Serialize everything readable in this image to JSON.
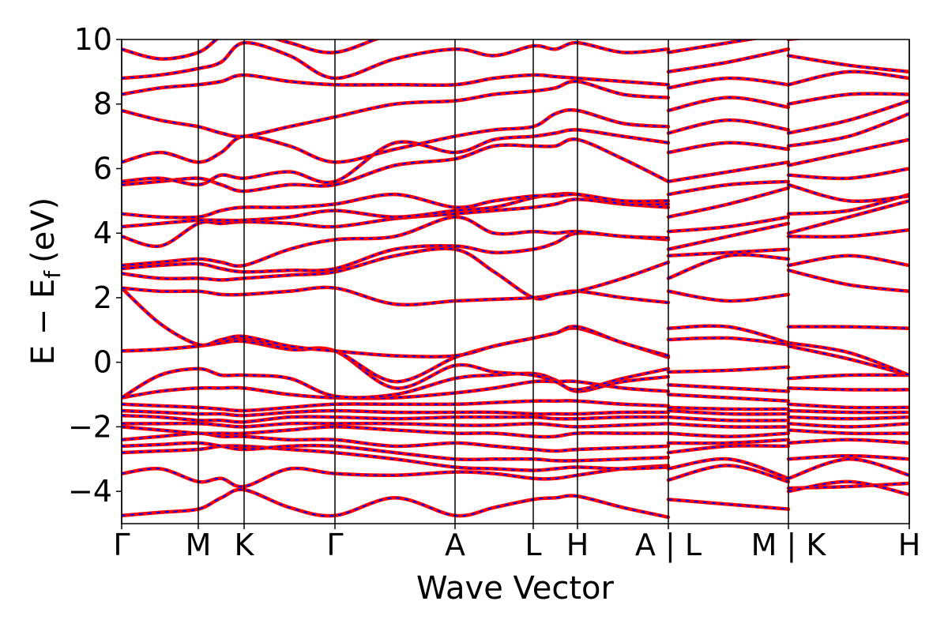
{
  "chart_data": {
    "type": "line",
    "xlabel": "Wave Vector",
    "ylabel": "E − E",
    "ylabel_sub": "f",
    "ylabel_unit": "(eV)",
    "color": "#ff0000",
    "dash_color": "#0000ff",
    "xlim": [
      0,
      9.97
    ],
    "ylim": [
      -5,
      10
    ],
    "xticks": [
      {
        "value": 0,
        "label": "Γ"
      },
      {
        "value": 0.97,
        "label": "M"
      },
      {
        "value": 1.55,
        "label": "K"
      },
      {
        "value": 2.7,
        "label": "Γ"
      },
      {
        "value": 4.22,
        "label": "A"
      },
      {
        "value": 5.21,
        "label": "L"
      },
      {
        "value": 5.77,
        "label": "H"
      },
      {
        "value": 6.92,
        "label": "A | L"
      },
      {
        "value": 8.44,
        "label": "M | K"
      },
      {
        "value": 9.97,
        "label": "H"
      }
    ],
    "yticks": [
      {
        "value": -4,
        "label": "−4"
      },
      {
        "value": -2,
        "label": "−2"
      },
      0,
      2,
      4,
      6,
      8,
      10
    ],
    "x": [
      0,
      0.485,
      0.97,
      1.26,
      1.55,
      2.125,
      2.7,
      3.46,
      4.22,
      4.715,
      5.21,
      5.49,
      5.77,
      6.345,
      6.92,
      6.92,
      6.92,
      7.68,
      8.44,
      8.44,
      8.44,
      9.205,
      9.97
    ],
    "series": [
      {
        "values": [
          -4.75,
          -4.65,
          -4.55,
          -4.2,
          -3.95,
          -4.5,
          -4.75,
          -4.2,
          -4.75,
          -4.5,
          -4.25,
          -4.2,
          -4.15,
          -4.5,
          -4.8,
          null,
          -4.25,
          -4.4,
          -4.55,
          null,
          -3.9,
          -3.85,
          -3.75
        ]
      },
      {
        "values": [
          -3.45,
          -3.3,
          -3.7,
          -3.6,
          -3.85,
          -3.3,
          -3.45,
          -3.5,
          -3.4,
          -3.45,
          -3.6,
          -3.6,
          -3.5,
          -3.3,
          -3.2,
          null,
          -3.65,
          -3.2,
          -3.7,
          null,
          -4.0,
          -3.7,
          -4.1
        ]
      },
      {
        "values": [
          -2.8,
          -2.75,
          -2.7,
          -2.6,
          -2.6,
          -2.7,
          -2.8,
          -3.0,
          -3.25,
          -3.3,
          -3.35,
          -3.3,
          -3.25,
          -3.3,
          -3.25,
          null,
          -3.3,
          -3.0,
          -3.6,
          null,
          -3.6,
          -3.0,
          -3.5
        ]
      },
      {
        "values": [
          -2.6,
          -2.55,
          -2.5,
          -2.6,
          -2.7,
          -2.6,
          -2.6,
          -2.8,
          -3.0,
          -3.0,
          -3.0,
          -3.05,
          -3.05,
          -3.0,
          -2.95,
          null,
          -2.8,
          -2.6,
          -2.6,
          null,
          -3.0,
          -2.9,
          -3.0
        ]
      },
      {
        "values": [
          -2.4,
          -2.3,
          -2.2,
          -2.3,
          -2.3,
          -2.4,
          -2.4,
          -2.6,
          -2.5,
          -2.6,
          -2.7,
          -2.75,
          -2.7,
          -2.65,
          -2.6,
          null,
          -2.5,
          -2.5,
          -2.4,
          null,
          -2.5,
          -2.4,
          -2.5
        ]
      },
      {
        "values": [
          -2.0,
          -2.1,
          -2.2,
          -2.2,
          -2.2,
          -2.1,
          -2.0,
          -2.1,
          -2.2,
          -2.2,
          -2.3,
          -2.3,
          -2.2,
          -2.2,
          -2.2,
          null,
          -2.2,
          -2.3,
          -2.2,
          null,
          -2.1,
          -2.2,
          -2.2
        ]
      },
      {
        "values": [
          -1.9,
          -1.9,
          -1.9,
          -1.95,
          -2.0,
          -1.9,
          -1.9,
          -1.9,
          -1.95,
          -1.95,
          -1.9,
          -1.95,
          -2.0,
          -1.95,
          -1.9,
          null,
          -1.9,
          -2.0,
          -2.0,
          null,
          -1.9,
          -2.0,
          -1.9
        ]
      },
      {
        "values": [
          -1.65,
          -1.7,
          -1.8,
          -1.8,
          -1.85,
          -1.7,
          -1.7,
          -1.75,
          -1.7,
          -1.7,
          -1.7,
          -1.75,
          -1.75,
          -1.7,
          -1.7,
          null,
          -1.7,
          -1.8,
          -1.8,
          null,
          -1.7,
          -1.75,
          -1.7
        ]
      },
      {
        "values": [
          -1.5,
          -1.55,
          -1.6,
          -1.6,
          -1.65,
          -1.55,
          -1.5,
          -1.55,
          -1.55,
          -1.55,
          -1.6,
          -1.6,
          -1.6,
          -1.55,
          -1.55,
          null,
          -1.5,
          -1.6,
          -1.6,
          null,
          -1.5,
          -1.55,
          -1.55
        ]
      },
      {
        "values": [
          -1.3,
          -1.35,
          -1.4,
          -1.45,
          -1.5,
          -1.4,
          -1.3,
          -1.3,
          -1.3,
          -1.25,
          -1.2,
          -1.2,
          -1.2,
          -1.3,
          -1.35,
          null,
          -1.4,
          -1.45,
          -1.45,
          null,
          -1.3,
          -1.4,
          -1.4
        ]
      },
      {
        "values": [
          -1.1,
          -0.9,
          -0.8,
          -0.8,
          -0.8,
          -1.0,
          -1.1,
          -1.1,
          -0.95,
          -0.8,
          -0.6,
          -0.6,
          -0.6,
          -0.8,
          -0.9,
          null,
          -1.0,
          -1.1,
          -1.2,
          null,
          -0.8,
          -0.85,
          -0.85
        ]
      },
      {
        "values": [
          -1.1,
          -0.4,
          -0.2,
          -0.4,
          -0.4,
          -0.5,
          -1.05,
          -1.0,
          -0.5,
          -0.4,
          -0.35,
          -0.55,
          -0.9,
          -0.6,
          -0.45,
          null,
          -0.7,
          -0.8,
          -0.9,
          null,
          -0.5,
          -0.4,
          -0.4
        ]
      },
      {
        "values": [
          0.35,
          0.4,
          0.5,
          0.6,
          0.65,
          0.4,
          0.35,
          -0.8,
          -0.1,
          -0.3,
          -0.4,
          -0.6,
          -0.85,
          -0.5,
          -0.2,
          null,
          -0.3,
          -0.25,
          -0.15,
          null,
          0.5,
          0.1,
          -0.4
        ]
      },
      {
        "values": [
          0.35,
          0.4,
          0.5,
          0.6,
          0.75,
          0.4,
          0.35,
          -0.6,
          0.15,
          0.5,
          0.75,
          0.9,
          1.05,
          0.6,
          0.15,
          null,
          0.7,
          0.75,
          0.55,
          null,
          0.6,
          0.3,
          -0.4
        ]
      },
      {
        "values": [
          2.3,
          1.2,
          0.55,
          0.7,
          0.8,
          0.5,
          0.35,
          0.2,
          0.2,
          0.5,
          0.75,
          0.9,
          1.1,
          0.6,
          0.2,
          null,
          1.05,
          1.1,
          0.6,
          null,
          1.1,
          1.1,
          1.05
        ]
      },
      {
        "values": [
          2.3,
          2.2,
          2.2,
          2.1,
          2.1,
          2.2,
          2.3,
          1.8,
          1.9,
          1.95,
          2.0,
          2.1,
          2.2,
          2.0,
          1.85,
          null,
          2.2,
          1.9,
          2.1,
          null,
          2.85,
          2.4,
          2.2
        ]
      },
      {
        "values": [
          2.75,
          2.6,
          2.6,
          2.55,
          2.6,
          2.7,
          2.8,
          3.3,
          3.5,
          2.8,
          2.0,
          2.1,
          2.2,
          2.6,
          3.1,
          null,
          2.6,
          3.3,
          3.2,
          null,
          3.0,
          3.3,
          3.0
        ]
      },
      {
        "values": [
          2.9,
          3.0,
          3.05,
          2.9,
          2.8,
          2.85,
          2.9,
          3.5,
          3.6,
          3.4,
          3.5,
          3.7,
          4.0,
          3.9,
          3.8,
          null,
          3.3,
          3.4,
          3.5,
          null,
          3.9,
          3.9,
          4.1
        ]
      },
      {
        "values": [
          3.0,
          3.1,
          3.2,
          3.1,
          3.0,
          3.5,
          3.8,
          3.9,
          4.5,
          4.0,
          4.05,
          4.0,
          4.05,
          3.9,
          3.85,
          null,
          3.5,
          3.9,
          4.3,
          null,
          4.0,
          4.5,
          5.0
        ]
      },
      {
        "values": [
          3.9,
          3.6,
          4.3,
          4.3,
          4.35,
          4.3,
          4.2,
          4.45,
          4.6,
          4.7,
          4.8,
          4.9,
          5.05,
          4.9,
          4.8,
          null,
          4.05,
          4.2,
          4.5,
          null,
          4.6,
          4.7,
          5.2
        ]
      },
      {
        "values": [
          4.2,
          4.3,
          4.4,
          4.4,
          4.4,
          4.5,
          4.7,
          4.5,
          4.7,
          4.8,
          5.1,
          5.2,
          5.2,
          4.9,
          4.9,
          null,
          4.5,
          4.9,
          5.4,
          null,
          5.5,
          5.0,
          5.15
        ]
      },
      {
        "values": [
          4.6,
          4.5,
          4.5,
          4.7,
          4.8,
          4.8,
          4.9,
          5.2,
          4.8,
          5.0,
          5.15,
          5.15,
          5.2,
          5.0,
          5.0,
          null,
          5.2,
          5.5,
          5.6,
          null,
          5.8,
          5.7,
          6.0
        ]
      },
      {
        "values": [
          5.5,
          5.6,
          5.7,
          5.5,
          5.3,
          5.5,
          5.5,
          6.1,
          6.3,
          6.7,
          6.7,
          6.7,
          6.9,
          6.3,
          5.6,
          null,
          5.6,
          5.9,
          6.2,
          null,
          6.1,
          6.5,
          6.9
        ]
      },
      {
        "values": [
          5.6,
          5.7,
          5.5,
          5.8,
          5.7,
          5.9,
          5.6,
          6.8,
          6.5,
          6.9,
          7.0,
          7.1,
          7.2,
          7.0,
          6.8,
          null,
          6.5,
          6.8,
          6.6,
          null,
          6.7,
          7.0,
          7.7
        ]
      },
      {
        "values": [
          6.2,
          6.5,
          6.2,
          6.5,
          7.0,
          6.7,
          6.2,
          6.6,
          7.0,
          7.2,
          7.3,
          7.7,
          7.8,
          7.4,
          7.3,
          null,
          7.1,
          7.5,
          7.2,
          null,
          7.1,
          7.5,
          8.1
        ]
      },
      {
        "values": [
          7.8,
          7.5,
          7.3,
          7.1,
          7.0,
          7.3,
          7.6,
          8.0,
          8.1,
          8.3,
          8.4,
          8.5,
          8.7,
          8.3,
          8.2,
          null,
          7.8,
          8.2,
          7.9,
          null,
          8.0,
          8.3,
          8.3
        ]
      },
      {
        "values": [
          8.3,
          8.5,
          8.6,
          8.7,
          8.9,
          8.7,
          8.6,
          8.6,
          8.6,
          8.8,
          8.9,
          8.85,
          8.8,
          8.7,
          8.6,
          null,
          8.5,
          8.8,
          8.6,
          null,
          8.6,
          9.0,
          8.8
        ]
      },
      {
        "values": [
          8.8,
          8.9,
          9.1,
          9.3,
          9.9,
          9.5,
          8.8,
          9.4,
          9.7,
          9.5,
          9.8,
          9.7,
          9.9,
          9.6,
          9.7,
          null,
          9.0,
          9.3,
          9.7,
          null,
          9.5,
          9.2,
          9.0
        ]
      },
      {
        "values": [
          9.7,
          9.4,
          9.6,
          10.1,
          10.3,
          9.9,
          9.6,
          10.2,
          10.4,
          10.3,
          10.3,
          10.3,
          10.5,
          10.2,
          10.2,
          null,
          9.6,
          9.9,
          10.2,
          null,
          10.0,
          10.2,
          10.3
        ]
      }
    ]
  }
}
